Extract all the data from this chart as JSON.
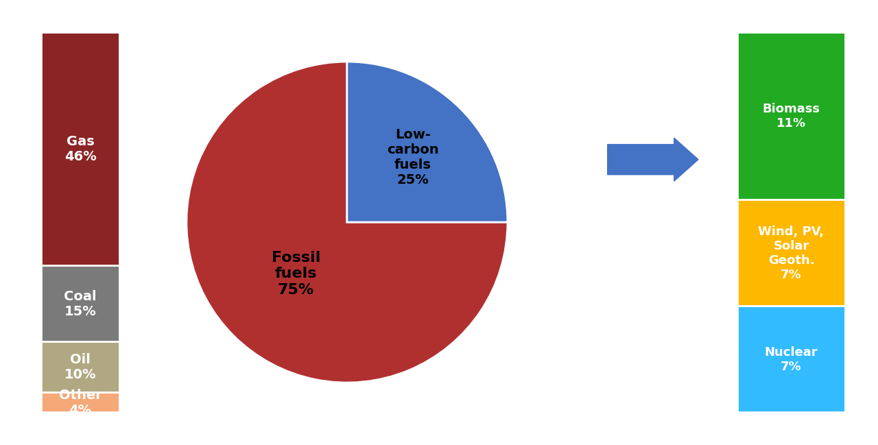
{
  "background_color": "#ffffff",
  "left_bar": {
    "segments": [
      {
        "label": "Gas\n46%",
        "color": "#8B2525",
        "pct": 46
      },
      {
        "label": "Coal\n15%",
        "color": "#7A7A7A",
        "pct": 15
      },
      {
        "label": "Oil\n10%",
        "color": "#B0A882",
        "pct": 10
      },
      {
        "label": "Other\n4%",
        "color": "#F5A878",
        "pct": 4
      }
    ]
  },
  "pie": {
    "fossil_pct": 75,
    "lowcarbon_pct": 25,
    "fossil_color": "#B03030",
    "lowcarbon_color": "#4472C4",
    "fossil_label": "Fossil\nfuels\n75%",
    "lowcarbon_label": "Low-\ncarbon\nfuels\n25%",
    "theta1_fossil": 90,
    "theta2_fossil": 360,
    "theta1_lc": 0,
    "theta2_lc": 90
  },
  "arrow": {
    "color": "#4472C4"
  },
  "right_bar": {
    "segments": [
      {
        "label": "Biomass\n11%",
        "color": "#22AA22",
        "pct": 44
      },
      {
        "label": "Wind, PV,\nSolar\nGeoth.\n7%",
        "color": "#FFB800",
        "pct": 28
      },
      {
        "label": "Nuclear\n7%",
        "color": "#33BBFF",
        "pct": 28
      }
    ]
  }
}
